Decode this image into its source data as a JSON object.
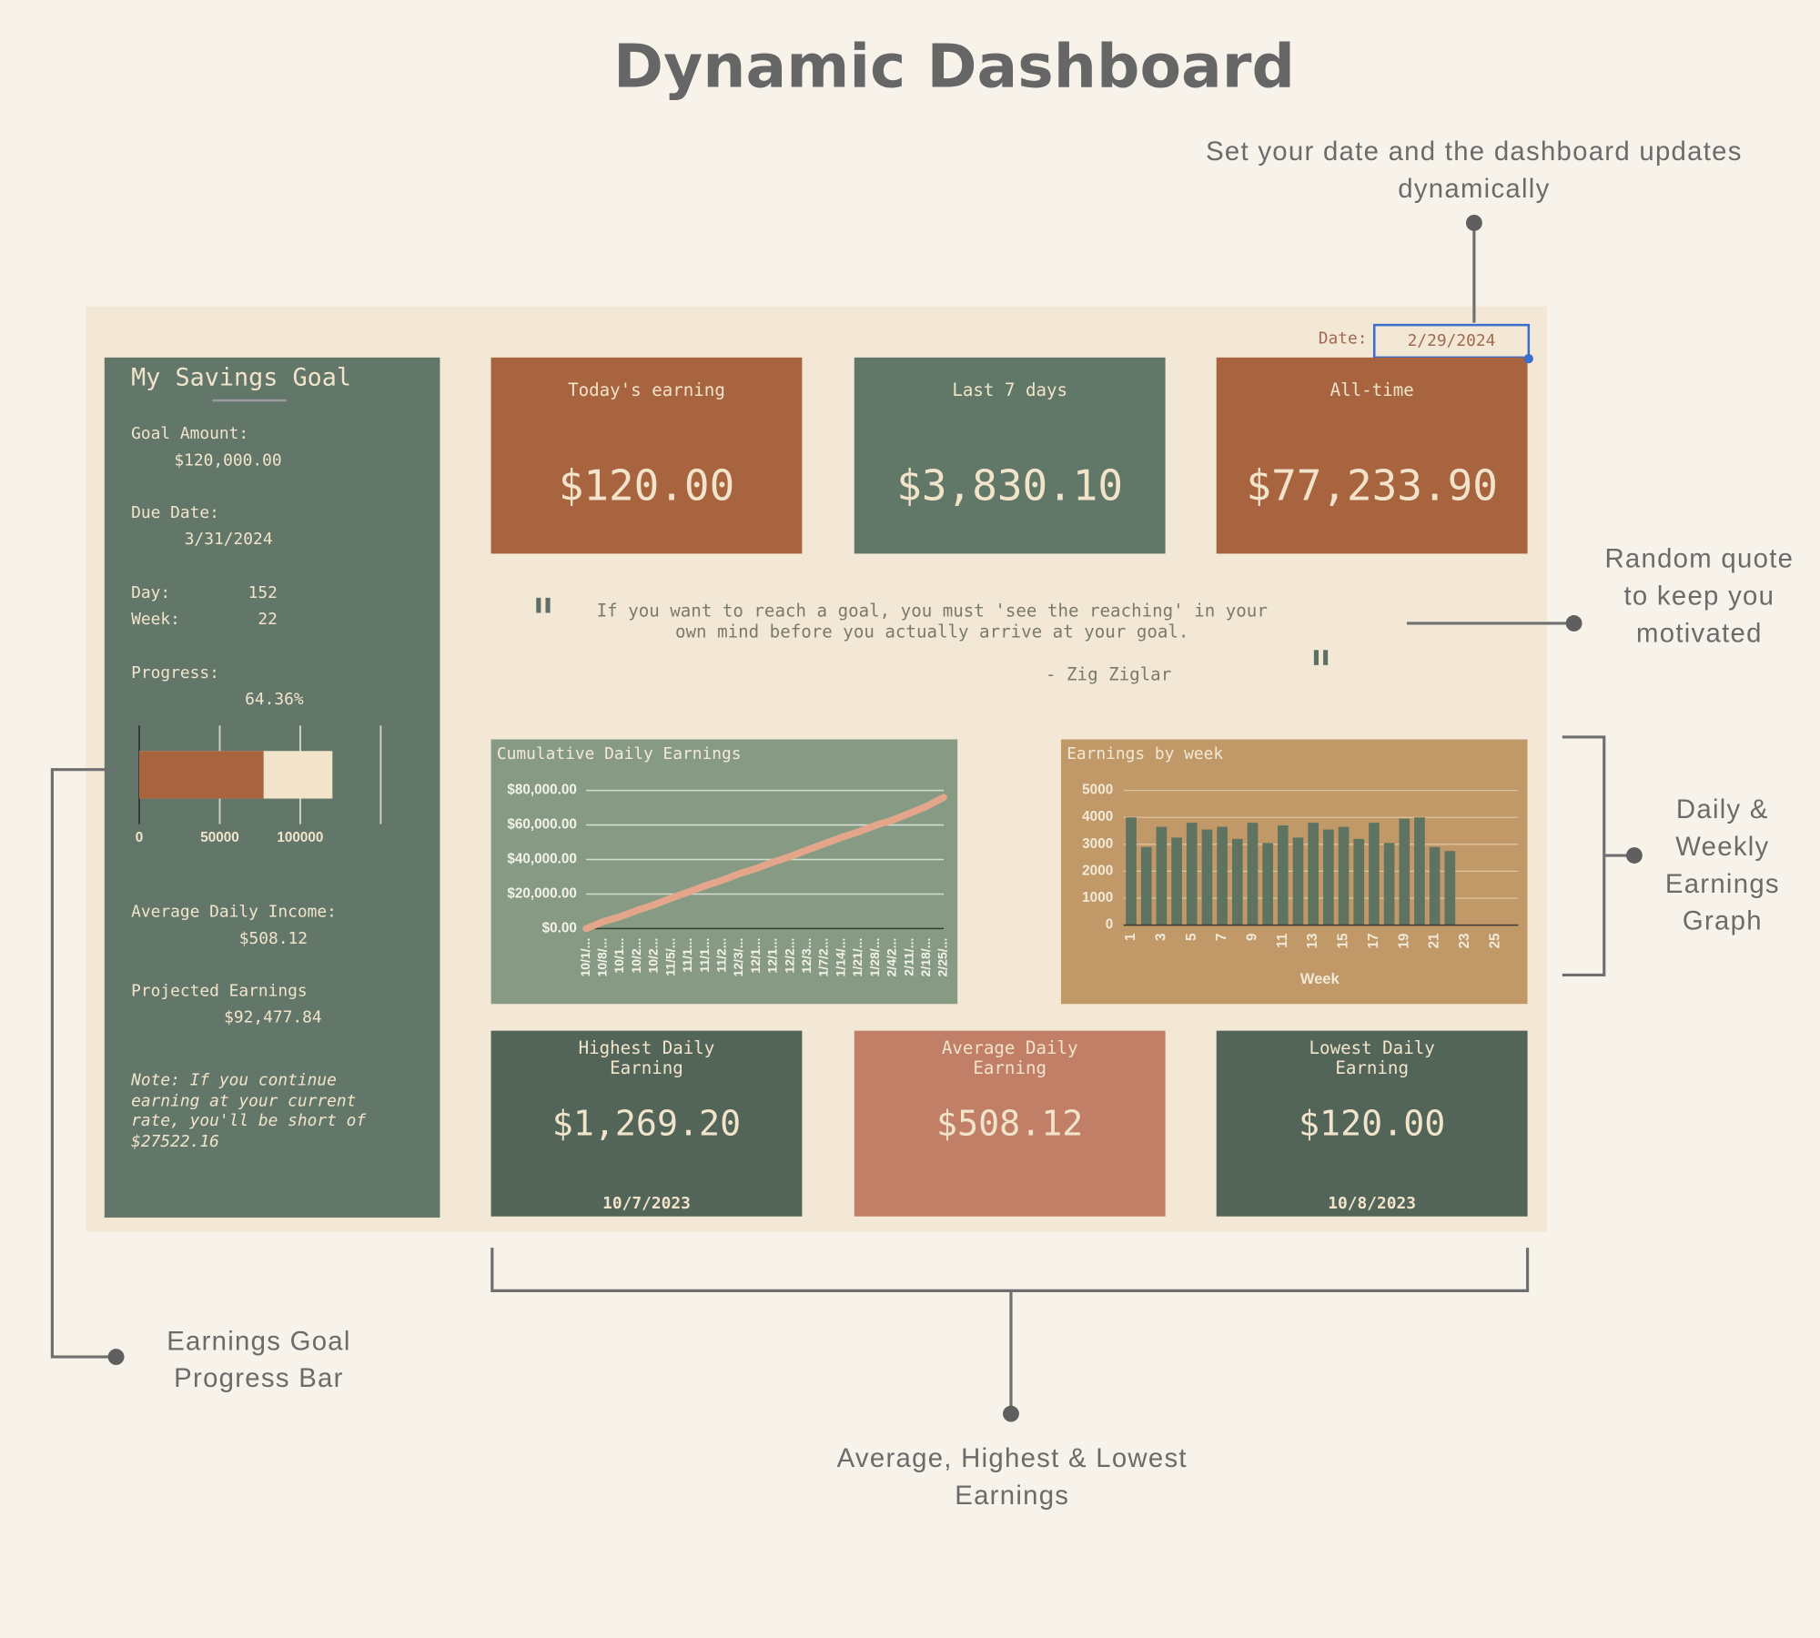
{
  "header": {
    "title": "Dynamic Dashboard"
  },
  "annotations": {
    "date_note": "Set your date and the dashboard updates dynamically",
    "quote_note": "Random quote to keep you motivated",
    "graph_note": "Daily & Weekly Earnings Graph",
    "summary_note": "Average, Highest & Lowest Earnings",
    "progress_note": "Earnings Goal Progress Bar"
  },
  "date": {
    "label": "Date:",
    "value": "2/29/2024"
  },
  "sidebar": {
    "title": "My Savings Goal",
    "goal_label": "Goal Amount:",
    "goal_value": "$120,000.00",
    "due_label": "Due Date:",
    "due_value": "3/31/2024",
    "day_label": "Day:",
    "day_value": 152,
    "week_label": "Week:",
    "week_value": 22,
    "progress_label": "Progress:",
    "progress_value": "64.36%",
    "avg_label": "Average Daily Income:",
    "avg_value": "$508.12",
    "proj_label": "Projected Earnings",
    "proj_value": "$92,477.84",
    "note": "Note: If you continue earning at your current rate, you'll be short of $27522.16"
  },
  "cards": [
    {
      "label": "Today's earning",
      "value": "$120.00"
    },
    {
      "label": "Last 7 days",
      "value": "$3,830.10"
    },
    {
      "label": "All-time",
      "value": "$77,233.90"
    }
  ],
  "quote": {
    "text": "If you want to reach a goal, you must 'see the reaching' in your own mind before you actually arrive at your goal.",
    "author": "- Zig Ziglar"
  },
  "stats": [
    {
      "label": "Highest Daily Earning",
      "value": "$1,269.20",
      "date": "10/7/2023"
    },
    {
      "label": "Average Daily Earning",
      "value": "$508.12"
    },
    {
      "label": "Lowest Daily Earning",
      "value": "$120.00",
      "date": "10/8/2023"
    }
  ],
  "chart_data": [
    {
      "type": "bar",
      "orientation": "horizontal",
      "overlap": true,
      "series": [
        {
          "color": "#f2e4cb",
          "values": [
            120000
          ]
        },
        {
          "color": "#a8633f",
          "values": [
            77233.9
          ]
        }
      ],
      "xlim": [
        0,
        150000
      ],
      "xticks": [
        0,
        50000,
        100000
      ],
      "grid": true
    },
    {
      "type": "line",
      "title": "Cumulative Daily Earnings",
      "color": "#e3a68a",
      "categories": [
        "10/1/...",
        "10/8/...",
        "10/1...",
        "10/2...",
        "10/2...",
        "11/5/...",
        "11/1...",
        "11/1...",
        "11/2...",
        "12/3/...",
        "12/1...",
        "12/1...",
        "12/2...",
        "12/3...",
        "1/7/2...",
        "1/14/...",
        "1/21/...",
        "1/28/...",
        "2/4/2...",
        "2/11/...",
        "2/18/...",
        "2/25/..."
      ],
      "values": [
        0,
        4000,
        6900,
        10550,
        13800,
        17600,
        21150,
        24800,
        28000,
        31800,
        34850,
        38550,
        41800,
        45600,
        49150,
        52800,
        56000,
        59800,
        62850,
        66800,
        70800,
        76000
      ],
      "ylim": [
        0,
        80000
      ],
      "yticks": [
        {
          "value": 0,
          "label": "$0.00"
        },
        {
          "value": 20000,
          "label": "$20,000.00"
        },
        {
          "value": 40000,
          "label": "$40,000.00"
        },
        {
          "value": 60000,
          "label": "$60,000.00"
        },
        {
          "value": 80000,
          "label": "$80,000.00"
        }
      ],
      "grid": true
    },
    {
      "type": "bar",
      "orientation": "vertical",
      "title": "Earnings by week",
      "xlabel": "Week",
      "color": "#5f7460",
      "categories": [
        1,
        null,
        3,
        null,
        5,
        null,
        7,
        null,
        9,
        null,
        11,
        null,
        13,
        null,
        15,
        null,
        17,
        null,
        19,
        null,
        21,
        null,
        23,
        null,
        25,
        null
      ],
      "values": [
        4000,
        2900,
        3650,
        3250,
        3800,
        3550,
        3650,
        3200,
        3800,
        3050,
        3700,
        3250,
        3800,
        3550,
        3650,
        3200,
        3800,
        3050,
        3950,
        4000,
        2900,
        2750,
        null,
        null,
        null,
        null
      ],
      "ylim": [
        0,
        5000
      ],
      "yticks": [
        0,
        1000,
        2000,
        3000,
        4000,
        5000
      ],
      "grid": true
    }
  ]
}
